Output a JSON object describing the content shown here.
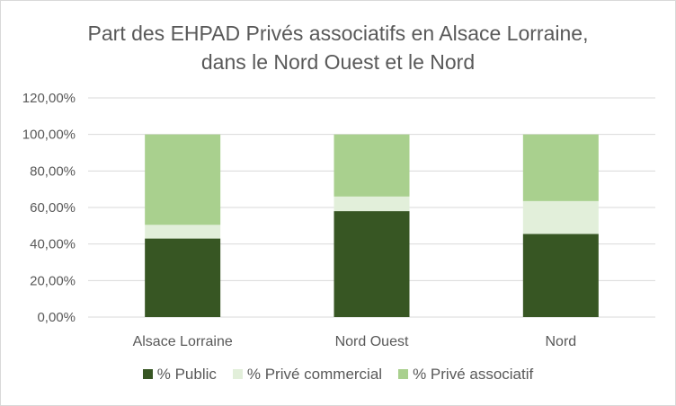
{
  "chart_data": {
    "type": "bar",
    "stacked": true,
    "title_lines": [
      "Part des EHPAD Privés associatifs en Alsace Lorraine,",
      "dans le Nord Ouest et le Nord"
    ],
    "categories": [
      "Alsace Lorraine",
      "Nord Ouest",
      "Nord"
    ],
    "series": [
      {
        "name": "% Public",
        "color": "#375623",
        "values": [
          43.0,
          58.0,
          45.5
        ]
      },
      {
        "name": "% Privé commercial",
        "color": "#e2efda",
        "values": [
          7.5,
          8.0,
          18.0
        ]
      },
      {
        "name": "% Privé associatif",
        "color": "#a9d08e",
        "values": [
          49.5,
          34.0,
          36.5
        ]
      }
    ],
    "ylim": [
      0,
      120
    ],
    "yticks": [
      "0,00%",
      "20,00%",
      "40,00%",
      "60,00%",
      "80,00%",
      "100,00%",
      "120,00%"
    ],
    "grid": true,
    "legend_position": "bottom"
  }
}
